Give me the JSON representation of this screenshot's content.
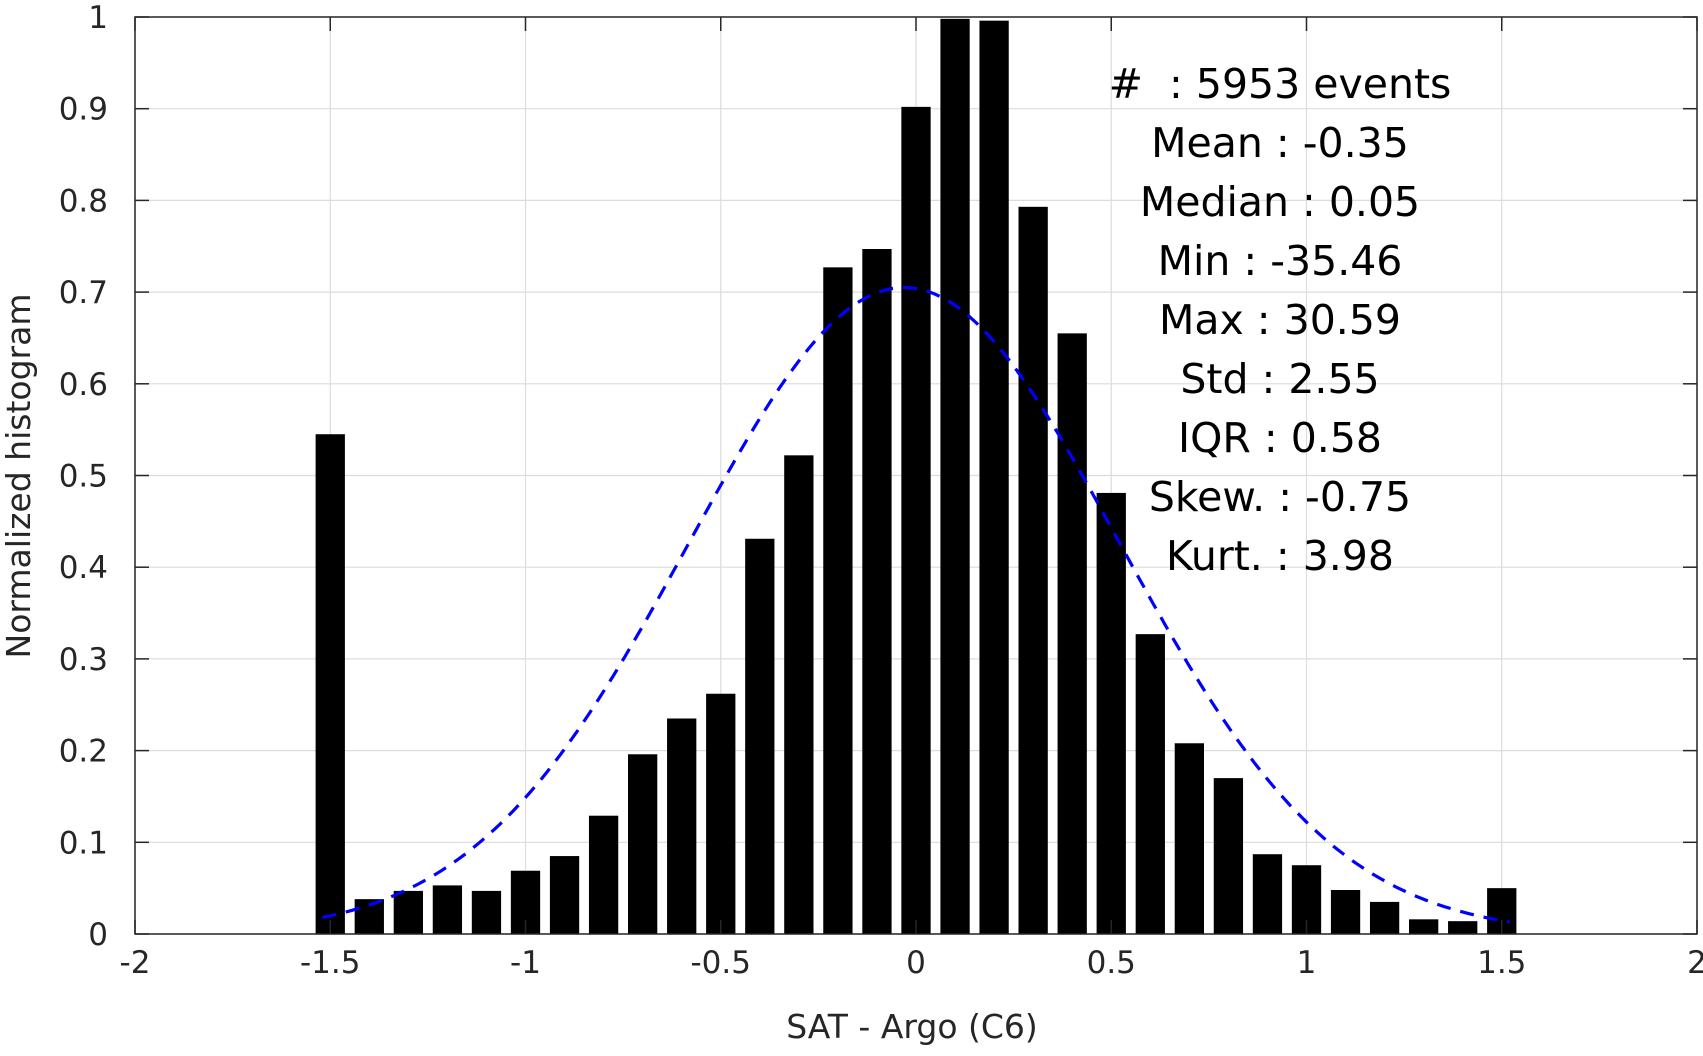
{
  "chart_data": {
    "type": "bar",
    "xlabel": "SAT - Argo (C6)",
    "ylabel": "Normalized histogram",
    "xlim": [
      -2,
      2
    ],
    "ylim": [
      0,
      1
    ],
    "xticks": [
      -2,
      -1.5,
      -1,
      -0.5,
      0,
      0.5,
      1,
      1.5,
      2
    ],
    "xtick_labels": [
      "-2",
      "-1.5",
      "-1",
      "-0.5",
      "0",
      "0.5",
      "1",
      "1.5",
      "2"
    ],
    "yticks": [
      0,
      0.1,
      0.2,
      0.3,
      0.4,
      0.5,
      0.6,
      0.7,
      0.8,
      0.9,
      1
    ],
    "ytick_labels": [
      "0",
      "0.1",
      "0.2",
      "0.3",
      "0.4",
      "0.5",
      "0.6",
      "0.7",
      "0.8",
      "0.9",
      "1"
    ],
    "grid": true,
    "bar_color": "#000000",
    "fit_color": "#0000ff",
    "bin_width": 0.1,
    "bar_width_fraction": 0.75,
    "bins": [
      -1.5,
      -1.4,
      -1.3,
      -1.2,
      -1.1,
      -1.0,
      -0.9,
      -0.8,
      -0.7,
      -0.6,
      -0.5,
      -0.4,
      -0.3,
      -0.2,
      -0.1,
      0.0,
      0.1,
      0.2,
      0.3,
      0.4,
      0.5,
      0.6,
      0.7,
      0.8,
      0.9,
      1.0,
      1.1,
      1.2,
      1.3,
      1.4,
      1.5
    ],
    "values": [
      0.545,
      0.038,
      0.047,
      0.053,
      0.047,
      0.069,
      0.085,
      0.129,
      0.196,
      0.235,
      0.262,
      0.431,
      0.522,
      0.727,
      0.747,
      0.902,
      0.998,
      0.996,
      0.793,
      0.655,
      0.481,
      0.327,
      0.208,
      0.17,
      0.087,
      0.075,
      0.048,
      0.035,
      0.016,
      0.014,
      0.05
    ],
    "fit_curve": {
      "style": "dashed",
      "x_range": [
        -1.52,
        1.52
      ],
      "peak_y": 0.705,
      "mean": -0.03,
      "sigma": 0.55
    },
    "stats_box": {
      "lines": [
        "#  : 5953 events",
        "Mean : -0.35",
        "Median : 0.05",
        "Min : -35.46",
        "Max : 30.59",
        "Std : 2.55",
        "IQR : 0.58",
        "Skew. : -0.75",
        "Kurt. : 3.98"
      ]
    }
  }
}
